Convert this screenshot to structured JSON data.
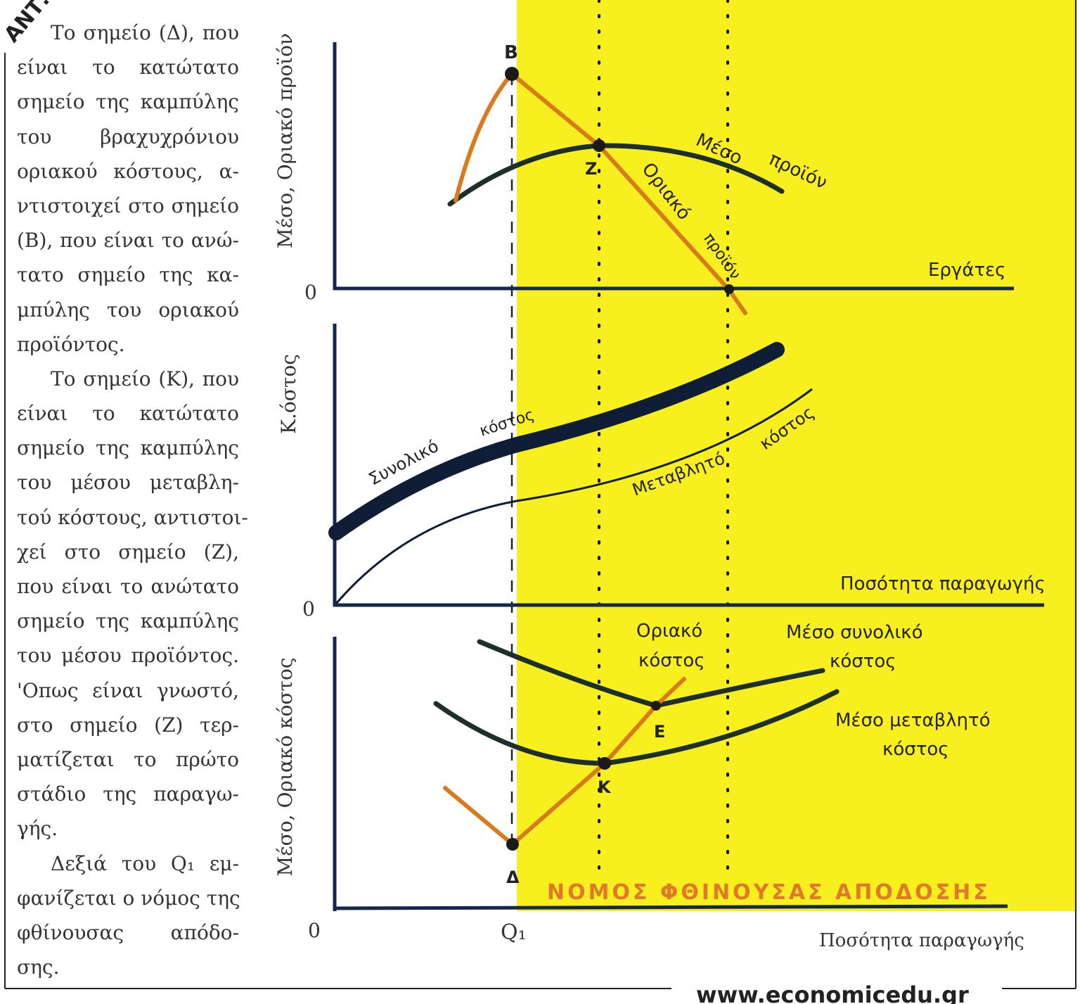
{
  "stamp": "ΑΝΤ. Σ",
  "paragraph_lines": [
    {
      "text": "Το σημείο (Δ), που",
      "indent": true
    },
    {
      "text": "είναι το κατώτατο"
    },
    {
      "text": "σημείο της καμπύλης"
    },
    {
      "text": "του βραχυχρόνιου"
    },
    {
      "text": "οριακού κόστους, α-"
    },
    {
      "text": "ντιστοιχεί στο σημείο"
    },
    {
      "text": "(Β), που είναι το ανώ-"
    },
    {
      "text": "τατο σημείο της κα-"
    },
    {
      "text": "μπύλης του οριακού"
    },
    {
      "text": "προϊόντος.",
      "last": true
    },
    {
      "text": "Το σημείο (Κ), που",
      "indent": true
    },
    {
      "text": "είναι το κατώτατο"
    },
    {
      "text": "σημείο της καμπύλης"
    },
    {
      "text": "του μέσου μεταβλη-"
    },
    {
      "text": "τού κόστους, αντιστοι-"
    },
    {
      "text": "χεί στο σημείο (Ζ),"
    },
    {
      "text": "που είναι το ανώτατο"
    },
    {
      "text": "σημείο της καμπύλης"
    },
    {
      "text": "του μέσου προϊόντος."
    },
    {
      "text": "'Οπως είναι γνωστό,"
    },
    {
      "text": "στο σημείο (Ζ) τερ-"
    },
    {
      "text": "ματίζεται το πρώτο"
    },
    {
      "text": "στάδιο της παραγω-"
    },
    {
      "text": "γής.",
      "last": true
    },
    {
      "text": "Δεξιά του Q₁ εμ-",
      "indent": true
    },
    {
      "text": "φανίζεται ο νόμος της"
    },
    {
      "text": "φθίνουσας απόδο-"
    },
    {
      "text": "σης.",
      "last": true
    }
  ],
  "diagram": {
    "colors": {
      "highlight": "#f7ef1e",
      "marginal": "#d97a1e",
      "average": "#1c2f2a",
      "axis": "#13294b",
      "law_text": "#e07a2a"
    },
    "top_panel": {
      "ylabel": "Μέσο, Οριακό προϊόν",
      "origin": "0",
      "xlabel": "Εργάτες",
      "point_b": "B",
      "point_z": "Z",
      "average_label_1": "Μέσο",
      "average_label_2": "προϊόν",
      "marginal_label_1": "Οριακό",
      "marginal_label_2": "προϊόν"
    },
    "middle_panel": {
      "ylabel": "Κ.όστος",
      "origin": "0",
      "xlabel": "Ποσότητα παραγωγής",
      "total_label_1": "Συνολικό",
      "total_label_2": "κόστος",
      "variable_label_1": "Μεταβλητό",
      "variable_label_2": "κόστος"
    },
    "bottom_panel": {
      "ylabel": "Μέσο, Οριακό κόστος",
      "origin": "0",
      "q1": "Q₁",
      "xlabel": "Ποσότητα παραγωγής",
      "mc_label_1": "Οριακό",
      "mc_label_2": "κόστος",
      "atc_label_1": "Μέσο συνολικό",
      "atc_label_2": "κόστος",
      "avc_label_1": "Μέσο μεταβλητό",
      "avc_label_2": "κόστος",
      "point_e": "E",
      "point_k": "K",
      "point_delta": "Δ",
      "law": "ΝΟΜΟΣ ΦΘΙΝΟΥΣΑΣ ΑΠΟΔΟΣΗΣ"
    }
  },
  "footer": {
    "website": "www.economicedu.gr"
  }
}
